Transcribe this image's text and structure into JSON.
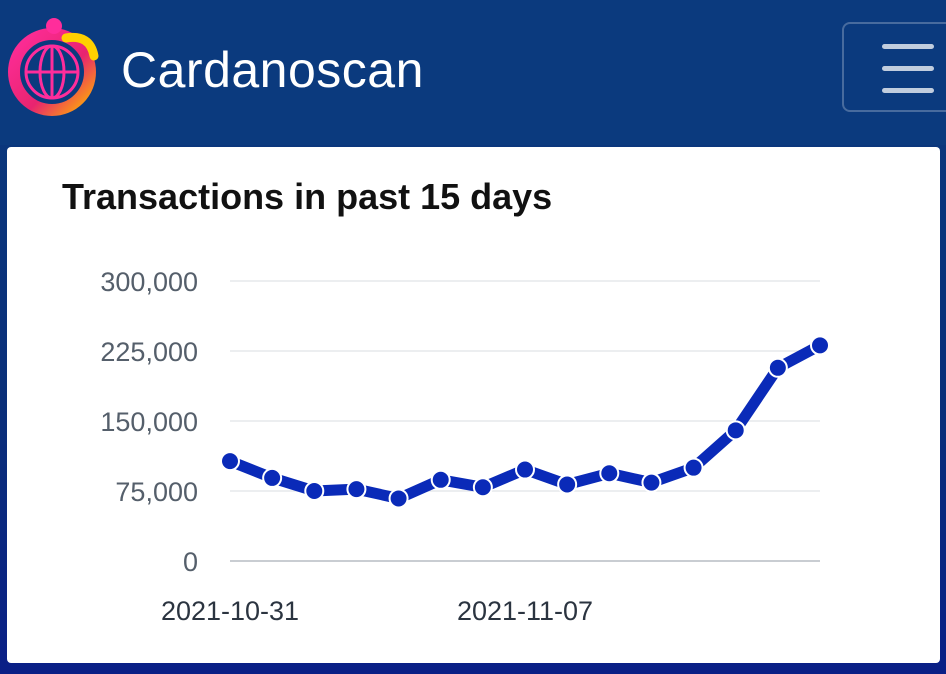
{
  "header": {
    "brand": "Cardanoscan",
    "logo_icon": "globe-logo-icon",
    "menu_icon": "hamburger-menu-icon"
  },
  "colors": {
    "header_bg": "#0b3a7e",
    "line": "#0a2ab8",
    "point": "#0a2ab8"
  },
  "chart_data": {
    "type": "line",
    "title": "Transactions in past 15 days",
    "xlabel": "",
    "ylabel": "",
    "x": [
      "2021-10-31",
      "2021-11-01",
      "2021-11-02",
      "2021-11-03",
      "2021-11-04",
      "2021-11-05",
      "2021-11-06",
      "2021-11-07",
      "2021-11-08",
      "2021-11-09",
      "2021-11-10",
      "2021-11-11",
      "2021-11-12",
      "2021-11-13",
      "2021-11-14"
    ],
    "x_tick_labels": [
      "2021-10-31",
      "2021-11-07"
    ],
    "series": [
      {
        "values": [
          107000,
          89000,
          75000,
          77000,
          67000,
          87000,
          79000,
          98000,
          82000,
          94000,
          84000,
          100000,
          140000,
          207000,
          231000
        ]
      }
    ],
    "y_ticks": [
      0,
      75000,
      150000,
      225000,
      300000
    ],
    "y_tick_labels": [
      "0",
      "75,000",
      "150,000",
      "225,000",
      "300,000"
    ],
    "ylim": [
      0,
      300000
    ],
    "grid": true,
    "legend": "none"
  }
}
